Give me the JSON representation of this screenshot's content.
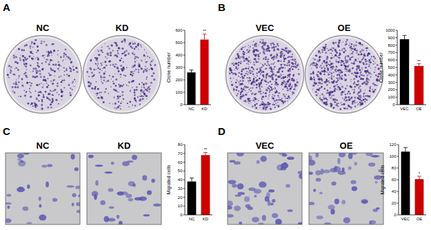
{
  "panels": [
    {
      "label": "A",
      "images": [
        "NC",
        "KD"
      ]
    },
    {
      "label": "B",
      "images": [
        "VEC",
        "OE"
      ]
    },
    {
      "label": "C",
      "images": [
        "NC",
        "KD"
      ]
    },
    {
      "label": "D",
      "images": [
        "VEC",
        "OE"
      ]
    }
  ],
  "chart_data": [
    {
      "type": "bar",
      "y_label": "Clone number",
      "categories": [
        "NC",
        "KD"
      ],
      "values": [
        260,
        525
      ],
      "errors": [
        20,
        45
      ],
      "colors": [
        "#000000",
        "#cc0000"
      ],
      "ylim": [
        0,
        600
      ],
      "yticks": [
        0,
        100,
        200,
        300,
        400,
        500,
        600
      ],
      "annotations": [
        "**"
      ]
    },
    {
      "type": "bar",
      "y_label": "Clone number",
      "categories": [
        "VEC",
        "OE"
      ],
      "values": [
        880,
        520
      ],
      "errors": [
        50,
        30
      ],
      "colors": [
        "#000000",
        "#cc0000"
      ],
      "ylim": [
        0,
        1000
      ],
      "yticks": [
        0,
        100,
        200,
        300,
        400,
        500,
        600,
        700,
        800,
        900,
        1000
      ],
      "annotations": [
        "**"
      ]
    },
    {
      "type": "bar",
      "y_label": "Migrated cells",
      "categories": [
        "NC",
        "KD"
      ],
      "values": [
        38,
        68
      ],
      "errors": [
        4,
        3
      ],
      "colors": [
        "#000000",
        "#cc0000"
      ],
      "ylim": [
        0,
        80
      ],
      "yticks": [
        0,
        10,
        20,
        30,
        40,
        50,
        60,
        70,
        80
      ],
      "annotations": [
        "**"
      ]
    },
    {
      "type": "bar",
      "y_label": "Migrated cells",
      "categories": [
        "VEC",
        "OE"
      ],
      "values": [
        108,
        61
      ],
      "errors": [
        7,
        5
      ],
      "colors": [
        "#000000",
        "#cc0000"
      ],
      "ylim": [
        0,
        120
      ],
      "yticks": [
        0,
        20,
        40,
        60,
        80,
        100,
        120
      ],
      "annotations": [
        "*"
      ]
    }
  ]
}
